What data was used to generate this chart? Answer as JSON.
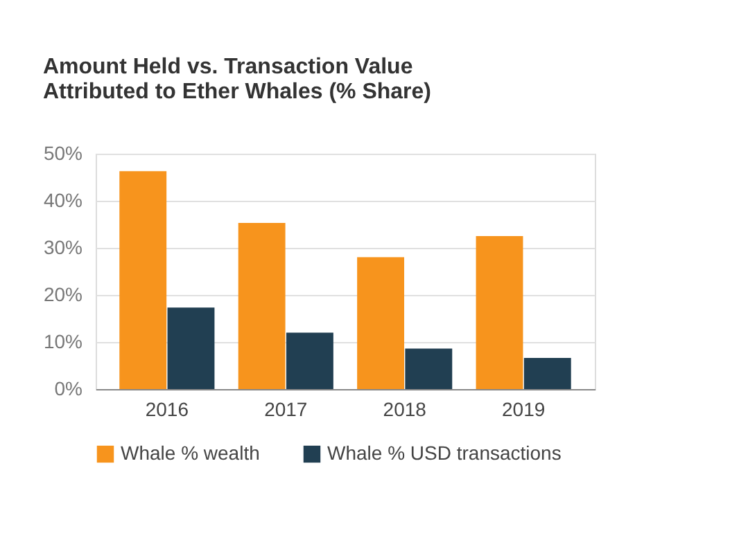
{
  "chart_data": {
    "type": "bar",
    "title": [
      "Amount Held vs. Transaction Value",
      "Attributed to Ether Whales (% Share)"
    ],
    "categories": [
      "2016",
      "2017",
      "2018",
      "2019"
    ],
    "series": [
      {
        "name": "Whale % wealth",
        "color": "#f7941d",
        "values": [
          46.3,
          35.3,
          28.0,
          32.5
        ]
      },
      {
        "name": "Whale % USD transactions",
        "color": "#213f52",
        "values": [
          17.3,
          12.0,
          8.6,
          6.6
        ]
      }
    ],
    "ylim": [
      0,
      50
    ],
    "yticks": [
      {
        "value": 0,
        "label": "0%"
      },
      {
        "value": 10,
        "label": "10%"
      },
      {
        "value": 20,
        "label": "20%"
      },
      {
        "value": 30,
        "label": "30%"
      },
      {
        "value": 40,
        "label": "40%"
      },
      {
        "value": 50,
        "label": "50%"
      }
    ],
    "grid": "y",
    "legend": "bottom"
  }
}
